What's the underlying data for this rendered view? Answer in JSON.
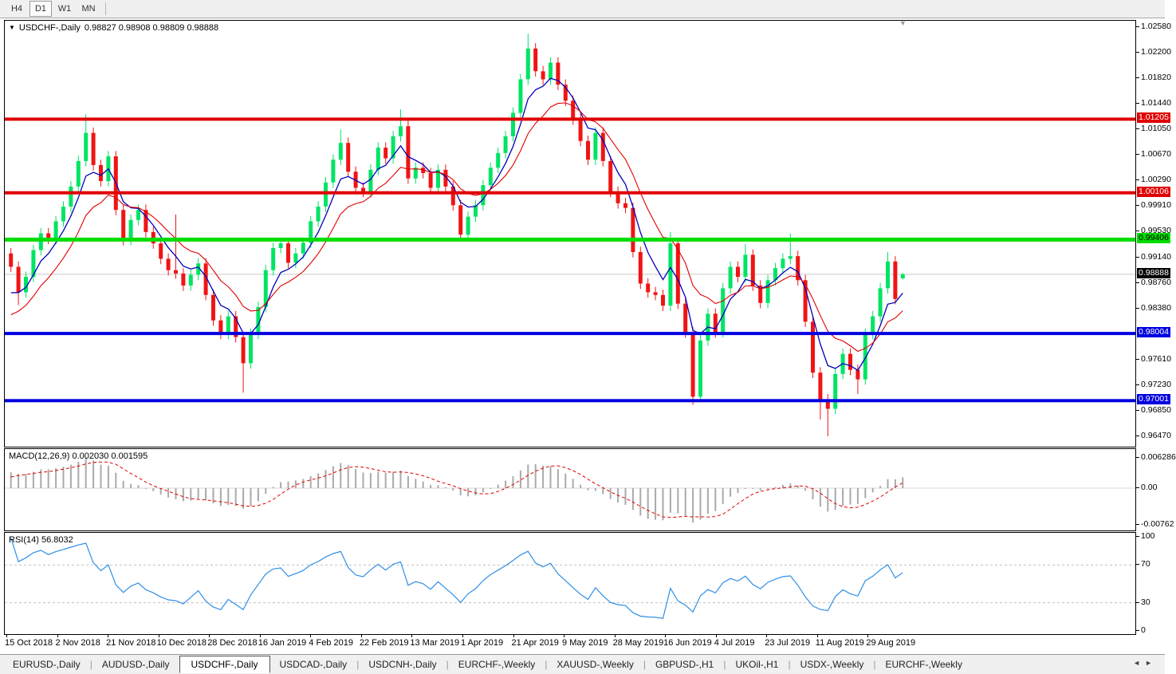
{
  "toolbar": {
    "timeframes": [
      {
        "label": "H4",
        "active": false
      },
      {
        "label": "D1",
        "active": true
      },
      {
        "label": "W1",
        "active": false
      },
      {
        "label": "MN",
        "active": false
      }
    ]
  },
  "chart": {
    "title_symbol": "USDCHF-,Daily",
    "title_ohlc": "0.98827 0.98908 0.98809 0.98888",
    "shift_marker": "▼"
  },
  "nav": {
    "left": "◄",
    "right": "►"
  },
  "tabs": {
    "items": [
      {
        "label": "EURUSD-,Daily",
        "active": false
      },
      {
        "label": "AUDUSD-,Daily",
        "active": false
      },
      {
        "label": "USDCHF-,Daily",
        "active": true
      },
      {
        "label": "USDCAD-,Daily",
        "active": false
      },
      {
        "label": "USDCNH-,Daily",
        "active": false
      },
      {
        "label": "EURCHF-,Weekly",
        "active": false
      },
      {
        "label": "XAUUSD-,Weekly",
        "active": false
      },
      {
        "label": "GBPUSD-,H1",
        "active": false
      },
      {
        "label": "UKOil-,H1",
        "active": false
      },
      {
        "label": "USDX-,Weekly",
        "active": false
      },
      {
        "label": "EURCHF-,Weekly",
        "active": false
      }
    ]
  },
  "chart_data": {
    "type": "candlestick",
    "symbol": "USDCHF",
    "timeframe": "Daily",
    "ohlc_display": {
      "open": 0.98827,
      "high": 0.98908,
      "low": 0.98809,
      "close": 0.98888
    },
    "ylim": [
      0.96314,
      1.02675
    ],
    "colors": {
      "up": "#00e464",
      "down": "#f01414",
      "ma_fast": "#0000bb",
      "ma_slow": "#e00000",
      "macd_bar": "#aaaaaa",
      "macd_signal": "#e00000",
      "rsi": "#2f8fe8",
      "level_red": "#e00000",
      "level_green": "#00dd00",
      "level_blue": "#0000e0",
      "current_line": "#c8c8c8",
      "current_box": "#000000"
    },
    "price_ticks": [
      {
        "t": "1.02580",
        "v": 1.0258
      },
      {
        "t": "1.02200",
        "v": 1.022
      },
      {
        "t": "1.01820",
        "v": 1.0182
      },
      {
        "t": "1.01440",
        "v": 1.0144
      },
      {
        "t": "1.01050",
        "v": 1.0105
      },
      {
        "t": "1.00670",
        "v": 1.0067
      },
      {
        "t": "1.00290",
        "v": 1.0029
      },
      {
        "t": "0.99910",
        "v": 0.9991
      },
      {
        "t": "0.99530",
        "v": 0.9953
      },
      {
        "t": "0.99140",
        "v": 0.9914
      },
      {
        "t": "0.98760",
        "v": 0.9876
      },
      {
        "t": "0.98380",
        "v": 0.9838
      },
      {
        "t": "0.97610",
        "v": 0.9761
      },
      {
        "t": "0.97230",
        "v": 0.9723
      },
      {
        "t": "0.96850",
        "v": 0.9685
      },
      {
        "t": "0.96470",
        "v": 0.9647
      }
    ],
    "hlines": [
      {
        "t": "1.01205",
        "v": 1.01205,
        "color": "#e00000",
        "fg": "#ffffff",
        "lw": 4
      },
      {
        "t": "1.00106",
        "v": 1.00106,
        "color": "#e00000",
        "fg": "#ffffff",
        "lw": 4
      },
      {
        "t": "0.99406",
        "v": 0.99406,
        "color": "#00dd00",
        "fg": "#000000",
        "lw": 5
      },
      {
        "t": "0.98004",
        "v": 0.98004,
        "color": "#0000e0",
        "fg": "#ffffff",
        "lw": 4
      },
      {
        "t": "0.97001",
        "v": 0.97001,
        "color": "#0000e0",
        "fg": "#ffffff",
        "lw": 4
      }
    ],
    "current_price": {
      "t": "0.98888",
      "v": 0.98888
    },
    "overlays": [
      {
        "name": "ma-fast",
        "period": 5,
        "color": "#0000bb"
      },
      {
        "name": "ma-slow",
        "period": 11,
        "color": "#e00000"
      }
    ],
    "indicators": [
      {
        "name": "MACD",
        "label": "MACD(12,26,9) 0.002030 0.001595",
        "value": 0.00203,
        "signal": 0.001595,
        "axis": [
          {
            "t": "0.006286",
            "v": 0.006286
          },
          {
            "t": "0.00",
            "v": 0
          },
          {
            "t": "-0.00762",
            "v": -0.00762
          }
        ],
        "ylim": [
          -0.00872,
          0.00806
        ]
      },
      {
        "name": "RSI",
        "label": "RSI(14) 56.8032",
        "value": 56.8032,
        "axis": [
          {
            "t": "100",
            "v": 100
          },
          {
            "t": "70",
            "v": 70
          },
          {
            "t": "30",
            "v": 30
          },
          {
            "t": "0",
            "v": 0
          }
        ],
        "levels": [
          70,
          30
        ],
        "ylim": [
          0,
          100
        ]
      }
    ],
    "x_labels": [
      "15 Oct 2018",
      "2 Nov 2018",
      "21 Nov 2018",
      "10 Dec 2018",
      "28 Dec 2018",
      "16 Jan 2019",
      "4 Feb 2019",
      "22 Feb 2019",
      "13 Mar 2019",
      "1 Apr 2019",
      "21 Apr 2019",
      "9 May 2019",
      "28 May 2019",
      "16 Jun 2019",
      "4 Jul 2019",
      "23 Jul 2019",
      "11 Aug 2019",
      "29 Aug 2019"
    ],
    "warmup_closes": [
      0.976,
      0.9775,
      0.979,
      0.9805,
      0.982,
      0.9838,
      0.9856,
      0.9875
    ],
    "candles": [
      [
        0.992,
        0.9928,
        0.9892,
        0.99
      ],
      [
        0.99,
        0.9908,
        0.9843,
        0.9862
      ],
      [
        0.9862,
        0.9893,
        0.9854,
        0.9885
      ],
      [
        0.9885,
        0.9933,
        0.9877,
        0.9925
      ],
      [
        0.9925,
        0.9958,
        0.9917,
        0.995
      ],
      [
        0.995,
        0.9958,
        0.9934,
        0.9942
      ],
      [
        0.9942,
        0.9976,
        0.9934,
        0.9968
      ],
      [
        0.9968,
        0.9998,
        0.996,
        0.999
      ],
      [
        0.999,
        1.0028,
        0.9982,
        1.002
      ],
      [
        1.002,
        1.0066,
        1.0012,
        1.0058
      ],
      [
        1.0058,
        1.0128,
        1.005,
        1.01
      ],
      [
        1.01,
        1.0108,
        1.0044,
        1.0052
      ],
      [
        1.0052,
        1.006,
        1.002,
        1.0028
      ],
      [
        1.0028,
        1.0073,
        1.002,
        1.0065
      ],
      [
        1.0065,
        1.0073,
        0.9977,
        0.9985
      ],
      [
        0.9985,
        0.9993,
        0.9932,
        0.994
      ],
      [
        0.994,
        0.9978,
        0.9932,
        0.997
      ],
      [
        0.997,
        0.9993,
        0.9962,
        0.9985
      ],
      [
        0.9985,
        0.9993,
        0.9944,
        0.9952
      ],
      [
        0.9952,
        0.996,
        0.9927,
        0.9935
      ],
      [
        0.9935,
        0.9943,
        0.9904,
        0.9912
      ],
      [
        0.9912,
        0.992,
        0.9887,
        0.9895
      ],
      [
        0.9895,
        0.9978,
        0.9882,
        0.989
      ],
      [
        0.989,
        0.9898,
        0.9864,
        0.9872
      ],
      [
        0.9872,
        0.9896,
        0.9864,
        0.9888
      ],
      [
        0.9888,
        0.9913,
        0.988,
        0.9905
      ],
      [
        0.9905,
        0.9913,
        0.985,
        0.9858
      ],
      [
        0.9858,
        0.9866,
        0.9812,
        0.982
      ],
      [
        0.982,
        0.9828,
        0.9792,
        0.98
      ],
      [
        0.98,
        0.9834,
        0.9792,
        0.9826
      ],
      [
        0.9826,
        0.9834,
        0.9787,
        0.9795
      ],
      [
        0.9795,
        0.9803,
        0.9712,
        0.9756
      ],
      [
        0.9756,
        0.9808,
        0.9748,
        0.98
      ],
      [
        0.98,
        0.9848,
        0.9792,
        0.984
      ],
      [
        0.984,
        0.9903,
        0.9832,
        0.9895
      ],
      [
        0.9895,
        0.9936,
        0.9887,
        0.9928
      ],
      [
        0.9928,
        0.9943,
        0.992,
        0.9935
      ],
      [
        0.9935,
        0.9943,
        0.9898,
        0.9906
      ],
      [
        0.9906,
        0.9928,
        0.9898,
        0.992
      ],
      [
        0.992,
        0.9944,
        0.9912,
        0.9936
      ],
      [
        0.9936,
        0.9976,
        0.9928,
        0.9968
      ],
      [
        0.9968,
        0.9998,
        0.996,
        0.999
      ],
      [
        0.999,
        1.0034,
        0.9982,
        1.0026
      ],
      [
        1.0026,
        1.0068,
        1.0018,
        1.006
      ],
      [
        1.006,
        1.0105,
        1.0052,
        1.0085
      ],
      [
        1.0085,
        1.0093,
        1.0034,
        1.0042
      ],
      [
        1.0042,
        1.005,
        1.001,
        1.0018
      ],
      [
        1.0018,
        1.0026,
        1.0004,
        1.0012
      ],
      [
        1.0012,
        1.0053,
        1.0004,
        1.0045
      ],
      [
        1.0045,
        1.0086,
        1.0037,
        1.0078
      ],
      [
        1.0078,
        1.0086,
        1.0054,
        1.0062
      ],
      [
        1.0062,
        1.0103,
        1.0054,
        1.0095
      ],
      [
        1.0095,
        1.0135,
        1.0087,
        1.011
      ],
      [
        1.011,
        1.0118,
        1.0024,
        1.0032
      ],
      [
        1.0032,
        1.0056,
        1.0024,
        1.0048
      ],
      [
        1.0048,
        1.0056,
        1.0032,
        1.004
      ],
      [
        1.004,
        1.0048,
        1.001,
        1.0018
      ],
      [
        1.0018,
        1.0053,
        1.001,
        1.0045
      ],
      [
        1.0045,
        1.0053,
        1.0012,
        1.002
      ],
      [
        1.002,
        1.0028,
        0.9984,
        0.9992
      ],
      [
        0.9992,
        1.0,
        0.994,
        0.9948
      ],
      [
        0.9948,
        0.9983,
        0.994,
        0.9975
      ],
      [
        0.9975,
        1.0,
        0.9967,
        0.9992
      ],
      [
        0.9992,
        1.003,
        0.9984,
        1.0022
      ],
      [
        1.0022,
        1.0056,
        1.0014,
        1.0048
      ],
      [
        1.0048,
        1.0078,
        1.004,
        1.007
      ],
      [
        1.007,
        1.0103,
        1.0062,
        1.0095
      ],
      [
        1.0095,
        1.0138,
        1.0087,
        1.013
      ],
      [
        1.013,
        1.0188,
        1.0122,
        1.018
      ],
      [
        1.018,
        1.0248,
        1.0172,
        1.0226
      ],
      [
        1.0226,
        1.0234,
        1.0184,
        1.0192
      ],
      [
        1.0192,
        1.02,
        1.0172,
        1.018
      ],
      [
        1.018,
        1.0213,
        1.0172,
        1.0205
      ],
      [
        1.0205,
        1.0213,
        1.0164,
        1.0172
      ],
      [
        1.0172,
        1.018,
        1.014,
        1.0148
      ],
      [
        1.0148,
        1.0156,
        1.0112,
        1.012
      ],
      [
        1.012,
        1.0128,
        1.008,
        1.0088
      ],
      [
        1.0088,
        1.0096,
        1.0052,
        1.006
      ],
      [
        1.006,
        1.0108,
        1.0052,
        1.01
      ],
      [
        1.01,
        1.0108,
        1.005,
        1.0058
      ],
      [
        1.0058,
        1.0066,
        1.0004,
        1.0012
      ],
      [
        1.0012,
        1.002,
        0.9987,
        0.9995
      ],
      [
        0.9995,
        1.0003,
        0.998,
        0.9988
      ],
      [
        0.9988,
        0.9996,
        0.9914,
        0.9922
      ],
      [
        0.9922,
        0.993,
        0.9867,
        0.9875
      ],
      [
        0.9875,
        0.9883,
        0.9854,
        0.9862
      ],
      [
        0.9862,
        0.987,
        0.985,
        0.9858
      ],
      [
        0.9858,
        0.9866,
        0.9834,
        0.9842
      ],
      [
        0.9842,
        0.9952,
        0.9834,
        0.9935
      ],
      [
        0.9935,
        0.9943,
        0.9837,
        0.9845
      ],
      [
        0.9845,
        0.9853,
        0.9794,
        0.9802
      ],
      [
        0.9802,
        0.981,
        0.9694,
        0.9706
      ],
      [
        0.9706,
        0.9798,
        0.9698,
        0.979
      ],
      [
        0.979,
        0.9838,
        0.9782,
        0.983
      ],
      [
        0.983,
        0.9838,
        0.9794,
        0.9802
      ],
      [
        0.9802,
        0.9876,
        0.9794,
        0.9868
      ],
      [
        0.9868,
        0.9908,
        0.986,
        0.99
      ],
      [
        0.99,
        0.9908,
        0.9877,
        0.9885
      ],
      [
        0.9885,
        0.9934,
        0.9877,
        0.9918
      ],
      [
        0.9918,
        0.9926,
        0.9864,
        0.9872
      ],
      [
        0.9872,
        0.988,
        0.9838,
        0.9846
      ],
      [
        0.9846,
        0.9888,
        0.9838,
        0.988
      ],
      [
        0.988,
        0.9906,
        0.9872,
        0.9898
      ],
      [
        0.9898,
        0.992,
        0.989,
        0.9912
      ],
      [
        0.9912,
        0.995,
        0.9904,
        0.9916
      ],
      [
        0.9916,
        0.9924,
        0.9872,
        0.988
      ],
      [
        0.988,
        0.9888,
        0.981,
        0.9818
      ],
      [
        0.9818,
        0.9826,
        0.9734,
        0.9742
      ],
      [
        0.9742,
        0.975,
        0.9672,
        0.9702
      ],
      [
        0.9702,
        0.971,
        0.9647,
        0.9688
      ],
      [
        0.9688,
        0.9748,
        0.968,
        0.974
      ],
      [
        0.974,
        0.9778,
        0.9732,
        0.977
      ],
      [
        0.977,
        0.9778,
        0.9738,
        0.9746
      ],
      [
        0.9746,
        0.9754,
        0.971,
        0.9732
      ],
      [
        0.9732,
        0.9808,
        0.9724,
        0.98
      ],
      [
        0.98,
        0.9834,
        0.9792,
        0.9826
      ],
      [
        0.9826,
        0.9876,
        0.9818,
        0.9868
      ],
      [
        0.9868,
        0.9922,
        0.986,
        0.9908
      ],
      [
        0.9908,
        0.9916,
        0.9844,
        0.9852
      ],
      [
        0.98827,
        0.98908,
        0.98809,
        0.98888
      ]
    ]
  }
}
